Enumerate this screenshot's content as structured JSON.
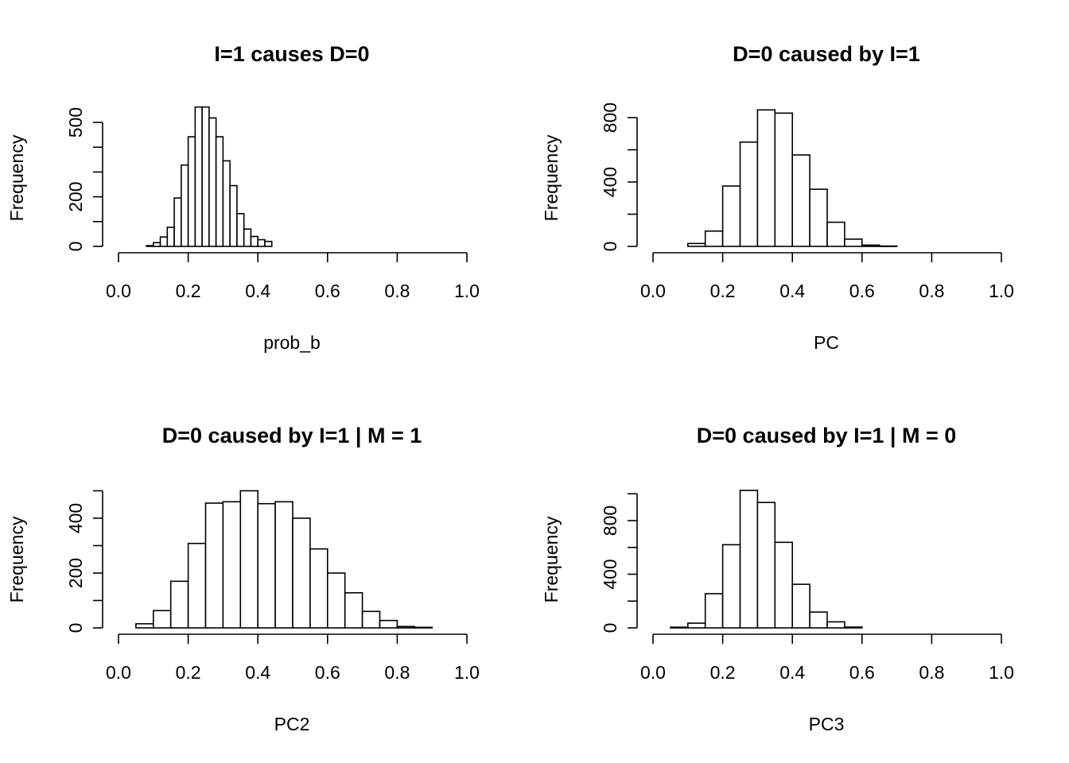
{
  "chart_data": [
    {
      "type": "bar",
      "title": "I=1 causes D=0",
      "xlabel": "prob_b",
      "ylabel": "Frequency",
      "xlim": [
        0,
        1
      ],
      "xticks": [
        0.0,
        0.2,
        0.4,
        0.6,
        0.8,
        1.0
      ],
      "xtick_labels": [
        "0.0",
        "0.2",
        "0.4",
        "0.6",
        "0.8",
        "1.0"
      ],
      "yticks": [
        0,
        100,
        200,
        300,
        400,
        500
      ],
      "ytick_labels": [
        "0",
        "",
        "200",
        "",
        "",
        "500"
      ],
      "bin_edges": [
        0.08,
        0.1,
        0.12,
        0.14,
        0.16,
        0.18,
        0.2,
        0.22,
        0.24,
        0.26,
        0.28,
        0.3,
        0.32,
        0.34,
        0.36,
        0.38,
        0.4,
        0.42,
        0.44
      ],
      "values": [
        3,
        15,
        38,
        77,
        195,
        328,
        442,
        562,
        562,
        518,
        442,
        345,
        245,
        132,
        70,
        40,
        27,
        20
      ],
      "grid": false
    },
    {
      "type": "bar",
      "title": "D=0 caused by I=1",
      "xlabel": "PC",
      "ylabel": "Frequency",
      "xlim": [
        0,
        1
      ],
      "xticks": [
        0.0,
        0.2,
        0.4,
        0.6,
        0.8,
        1.0
      ],
      "xtick_labels": [
        "0.0",
        "0.2",
        "0.4",
        "0.6",
        "0.8",
        "1.0"
      ],
      "yticks": [
        0,
        200,
        400,
        600,
        800
      ],
      "ytick_labels": [
        "0",
        "",
        "400",
        "",
        "800"
      ],
      "bin_edges": [
        0.1,
        0.15,
        0.2,
        0.25,
        0.3,
        0.35,
        0.4,
        0.45,
        0.5,
        0.55,
        0.6,
        0.65,
        0.7
      ],
      "values": [
        18,
        95,
        375,
        648,
        848,
        828,
        568,
        355,
        150,
        45,
        8,
        2
      ],
      "grid": false
    },
    {
      "type": "bar",
      "title": "D=0 caused by I=1 | M = 1",
      "xlabel": "PC2",
      "ylabel": "Frequency",
      "xlim": [
        0,
        1
      ],
      "xticks": [
        0.0,
        0.2,
        0.4,
        0.6,
        0.8,
        1.0
      ],
      "xtick_labels": [
        "0.0",
        "0.2",
        "0.4",
        "0.6",
        "0.8",
        "1.0"
      ],
      "yticks": [
        0,
        100,
        200,
        300,
        400,
        500
      ],
      "ytick_labels": [
        "0",
        "",
        "200",
        "",
        "400",
        ""
      ],
      "bin_edges": [
        0.05,
        0.1,
        0.15,
        0.2,
        0.25,
        0.3,
        0.35,
        0.4,
        0.45,
        0.5,
        0.55,
        0.6,
        0.65,
        0.7,
        0.75,
        0.8,
        0.85,
        0.9
      ],
      "values": [
        15,
        63,
        170,
        308,
        455,
        460,
        500,
        453,
        460,
        400,
        288,
        200,
        128,
        60,
        27,
        5,
        2
      ],
      "grid": false
    },
    {
      "type": "bar",
      "title": "D=0 caused by I=1 | M = 0",
      "xlabel": "PC3",
      "ylabel": "Frequency",
      "xlim": [
        0,
        1
      ],
      "xticks": [
        0.0,
        0.2,
        0.4,
        0.6,
        0.8,
        1.0
      ],
      "xtick_labels": [
        "0.0",
        "0.2",
        "0.4",
        "0.6",
        "0.8",
        "1.0"
      ],
      "yticks": [
        0,
        200,
        400,
        600,
        800,
        1000
      ],
      "ytick_labels": [
        "0",
        "",
        "400",
        "",
        "800",
        ""
      ],
      "bin_edges": [
        0.05,
        0.1,
        0.15,
        0.2,
        0.25,
        0.3,
        0.35,
        0.4,
        0.45,
        0.5,
        0.55,
        0.6
      ],
      "values": [
        5,
        35,
        255,
        620,
        1025,
        935,
        638,
        325,
        118,
        45,
        6
      ],
      "grid": false
    }
  ]
}
